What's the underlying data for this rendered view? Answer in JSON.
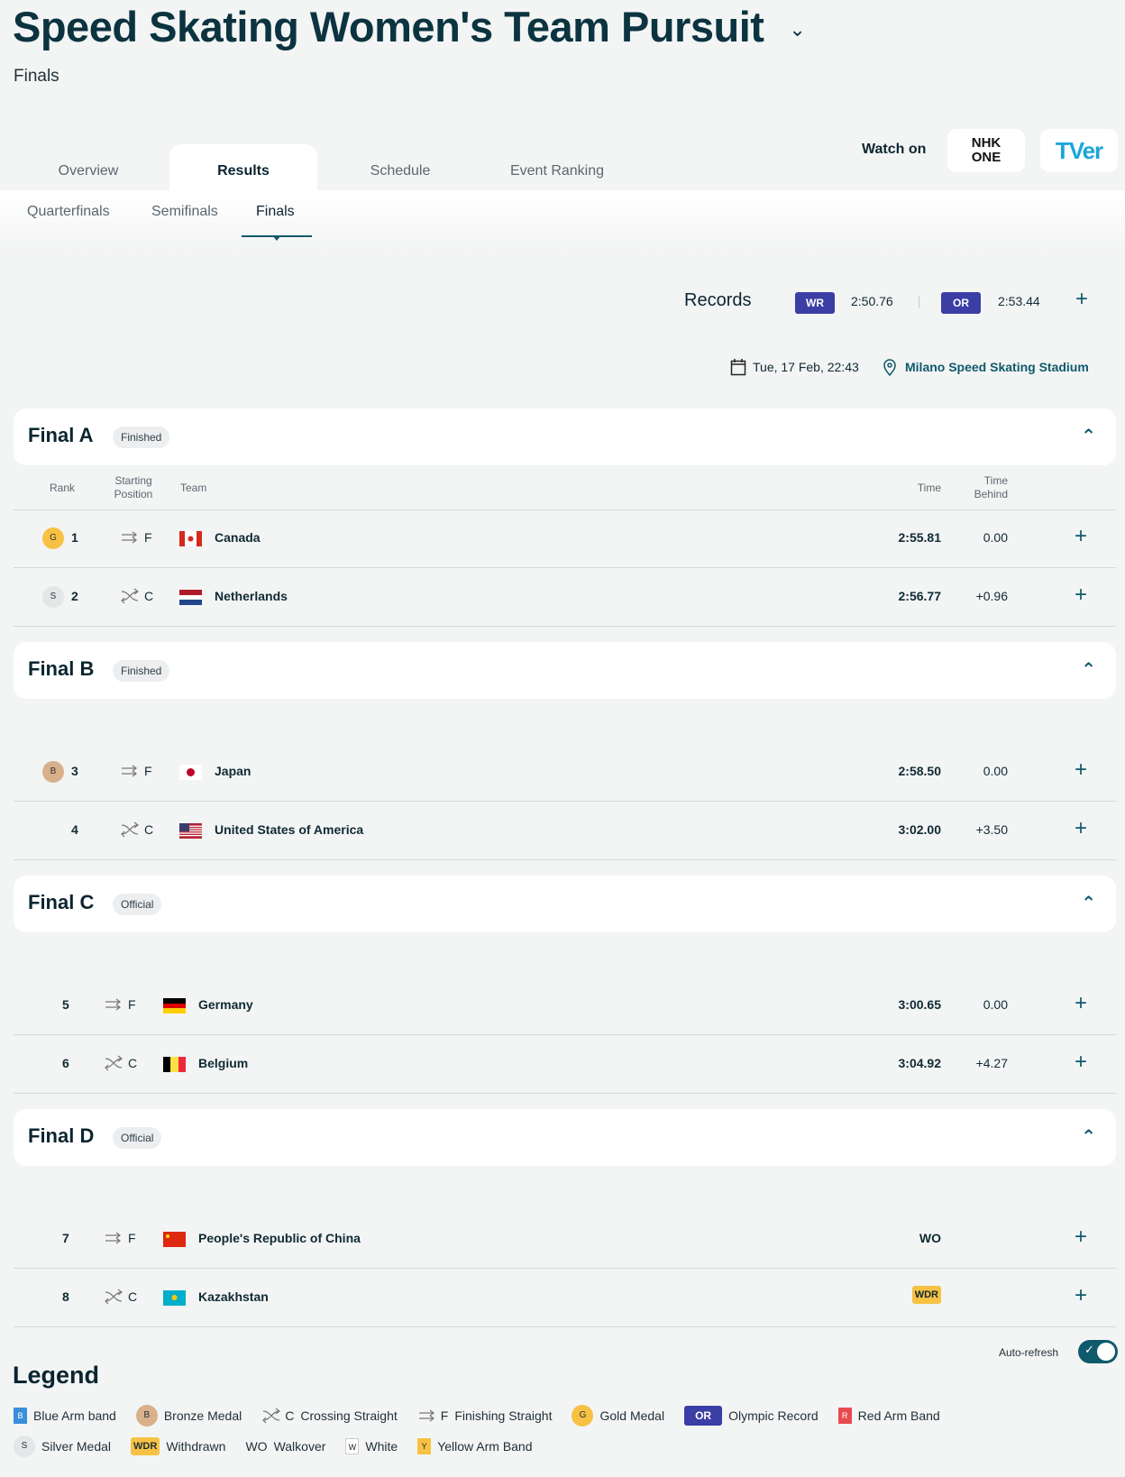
{
  "header": {
    "title": "Speed Skating Women's Team Pursuit",
    "subtitle": "Finals"
  },
  "tabs": [
    {
      "label": "Overview"
    },
    {
      "label": "Results",
      "active": true
    },
    {
      "label": "Schedule"
    },
    {
      "label": "Event Ranking"
    }
  ],
  "subtabs": [
    {
      "label": "Quarterfinals"
    },
    {
      "label": "Semifinals"
    },
    {
      "label": "Finals",
      "active": true
    }
  ],
  "watch": {
    "label": "Watch on",
    "providers": [
      "NHK ONE",
      "TVer"
    ]
  },
  "records": {
    "label": "Records",
    "wr_badge": "WR",
    "wr": "2:50.76",
    "or_badge": "OR",
    "or": "2:53.44"
  },
  "event": {
    "date": "Tue, 17 Feb, 22:43",
    "venue": "Milano Speed Skating Stadium"
  },
  "columns": {
    "rank": "Rank",
    "start": "Starting Position",
    "team": "Team",
    "time": "Time",
    "behind": "Time Behind"
  },
  "finals": [
    {
      "title": "Final A",
      "status": "Finished",
      "rows": [
        {
          "medal": "G",
          "rank": "1",
          "pos": "F",
          "team": "Canada",
          "time": "2:55.81",
          "behind": "0.00"
        },
        {
          "medal": "S",
          "rank": "2",
          "pos": "C",
          "team": "Netherlands",
          "time": "2:56.77",
          "behind": "+0.96"
        }
      ]
    },
    {
      "title": "Final B",
      "status": "Finished",
      "rows": [
        {
          "medal": "B",
          "rank": "3",
          "pos": "F",
          "team": "Japan",
          "time": "2:58.50",
          "behind": "0.00"
        },
        {
          "rank": "4",
          "pos": "C",
          "team": "United States of America",
          "time": "3:02.00",
          "behind": "+3.50"
        }
      ]
    },
    {
      "title": "Final C",
      "status": "Official",
      "rows": [
        {
          "rank": "5",
          "pos": "F",
          "team": "Germany",
          "time": "3:00.65",
          "behind": "0.00"
        },
        {
          "rank": "6",
          "pos": "C",
          "team": "Belgium",
          "time": "3:04.92",
          "behind": "+4.27"
        }
      ]
    },
    {
      "title": "Final D",
      "status": "Official",
      "rows": [
        {
          "rank": "7",
          "pos": "F",
          "team": "People's Republic of China",
          "time": "WO",
          "behind": ""
        },
        {
          "rank": "8",
          "pos": "C",
          "team": "Kazakhstan",
          "time": "WDR",
          "behind": ""
        }
      ]
    }
  ],
  "auto_refresh": {
    "label": "Auto-refresh",
    "on": true
  },
  "legend": {
    "title": "Legend",
    "items": [
      {
        "key": "B",
        "label": "Blue Arm band"
      },
      {
        "key": "B",
        "label": "Bronze Medal"
      },
      {
        "key": "C",
        "label": "Crossing Straight"
      },
      {
        "key": "F",
        "label": "Finishing Straight"
      },
      {
        "key": "G",
        "label": "Gold Medal"
      },
      {
        "key": "OR",
        "label": "Olympic Record"
      },
      {
        "key": "R",
        "label": "Red Arm Band"
      },
      {
        "key": "S",
        "label": "Silver Medal"
      },
      {
        "key": "WDR",
        "label": "Withdrawn"
      },
      {
        "key": "WO",
        "label": "Walkover"
      },
      {
        "key": "W",
        "label": "White"
      },
      {
        "key": "Y",
        "label": "Yellow Arm Band"
      }
    ]
  },
  "colors": {
    "accent": "#0e5a6b",
    "record_badge": "#3b3ea5",
    "gold": "#f7c244",
    "silver": "#e4e6e7",
    "bronze": "#d9b08c"
  }
}
